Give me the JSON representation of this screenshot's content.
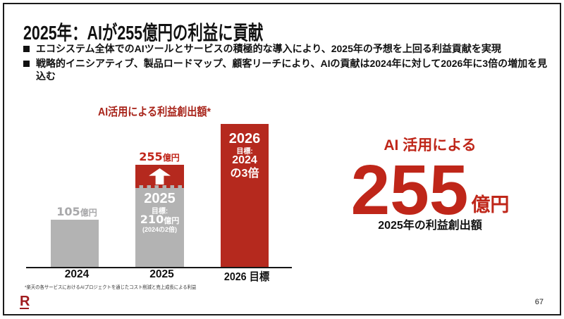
{
  "slide": {
    "title": "2025年：AIが255億円の利益に貢献",
    "bullets": [
      "エコシステム全体でのAIツールとサービスの積極的な導入により、2025年の予想を上回る利益貢献を実現",
      "戦略的イニシアティブ、製品ロードマップ、顧客リーチにより、AIの貢献は2024年に対して2026年に3倍の増加を見込む"
    ],
    "footnote": "*楽天の各サービスにおけるAIプロジェクトを通じたコスト削減と売上成長による利益",
    "page_number": "67",
    "logo_letter": "R"
  },
  "chart_data": {
    "type": "bar",
    "title": "AI活用による利益創出額*",
    "unit": "億円",
    "categories": [
      "2024",
      "2025",
      "2026 目標"
    ],
    "series": [
      {
        "name": "gray",
        "values": [
          105,
          210,
          0
        ]
      },
      {
        "name": "red",
        "values": [
          0,
          45,
          315
        ]
      }
    ],
    "bar_2024": {
      "label_num": "105",
      "label_unit": "億円"
    },
    "bar_2025": {
      "label_num": "255",
      "label_unit": "億円",
      "line1": "2025",
      "line2": "目標:",
      "line3_num": "210",
      "line3_unit": "億円",
      "line4": "(2024の2倍)"
    },
    "bar_2026": {
      "line1": "2026",
      "line2": "目標:",
      "line3": "2024",
      "line4": "の3倍"
    },
    "colors": {
      "gray": "#b3b3b3",
      "red": "#b5291e"
    }
  },
  "highlight": {
    "line1": "AI 活用による",
    "big_num": "255",
    "big_unit": "億円",
    "caption": "2025年の利益創出額"
  }
}
